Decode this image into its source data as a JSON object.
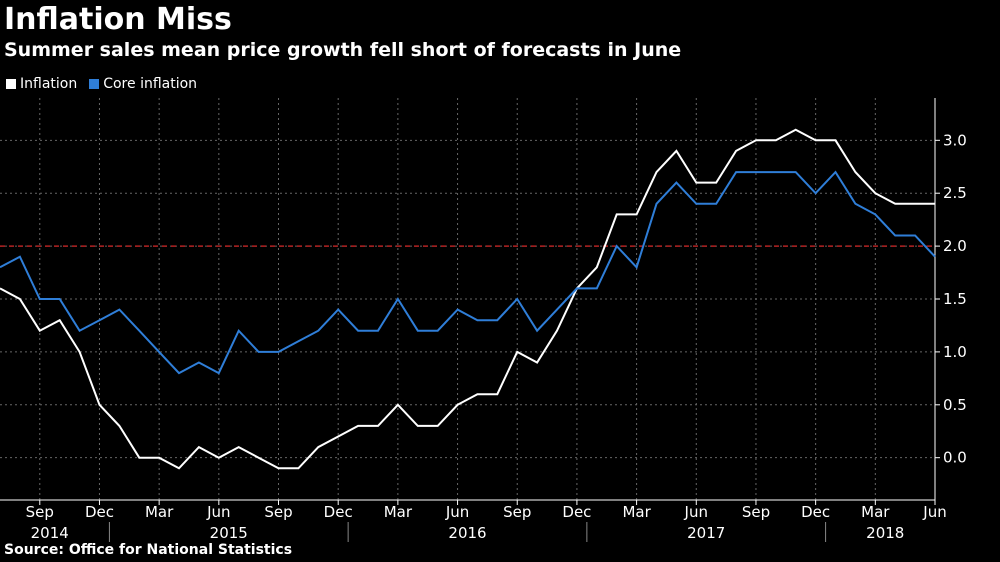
{
  "title": "Inflation Miss",
  "subtitle": "Summer sales mean price growth fell short of forecasts in June",
  "source": "Source: Office for National Statistics",
  "colors": {
    "inflation": "#ffffff",
    "core": "#2f7ed8",
    "target": "#b22222",
    "grid": "#666666"
  },
  "legend": [
    {
      "label": "Inflation",
      "color": "#ffffff"
    },
    {
      "label": "Core inflation",
      "color": "#2f7ed8"
    }
  ],
  "chart_data": {
    "type": "line",
    "x": [
      "2014-07",
      "2014-08",
      "2014-09",
      "2014-10",
      "2014-11",
      "2014-12",
      "2015-01",
      "2015-02",
      "2015-03",
      "2015-04",
      "2015-05",
      "2015-06",
      "2015-07",
      "2015-08",
      "2015-09",
      "2015-10",
      "2015-11",
      "2015-12",
      "2016-01",
      "2016-02",
      "2016-03",
      "2016-04",
      "2016-05",
      "2016-06",
      "2016-07",
      "2016-08",
      "2016-09",
      "2016-10",
      "2016-11",
      "2016-12",
      "2017-01",
      "2017-02",
      "2017-03",
      "2017-04",
      "2017-05",
      "2017-06",
      "2017-07",
      "2017-08",
      "2017-09",
      "2017-10",
      "2017-11",
      "2017-12",
      "2018-01",
      "2018-02",
      "2018-03",
      "2018-04",
      "2018-05",
      "2018-06"
    ],
    "series": [
      {
        "name": "Inflation",
        "color": "#ffffff",
        "values": [
          1.6,
          1.5,
          1.2,
          1.3,
          1.0,
          0.5,
          0.3,
          0.0,
          0.0,
          -0.1,
          0.1,
          0.0,
          0.1,
          0.0,
          -0.1,
          -0.1,
          0.1,
          0.2,
          0.3,
          0.3,
          0.5,
          0.3,
          0.3,
          0.5,
          0.6,
          0.6,
          1.0,
          0.9,
          1.2,
          1.6,
          1.8,
          2.3,
          2.3,
          2.7,
          2.9,
          2.6,
          2.6,
          2.9,
          3.0,
          3.0,
          3.1,
          3.0,
          3.0,
          2.7,
          2.5,
          2.4,
          2.4,
          2.4
        ]
      },
      {
        "name": "Core inflation",
        "color": "#2f7ed8",
        "values": [
          1.8,
          1.9,
          1.5,
          1.5,
          1.2,
          1.3,
          1.4,
          1.2,
          1.0,
          0.8,
          0.9,
          0.8,
          1.2,
          1.0,
          1.0,
          1.1,
          1.2,
          1.4,
          1.2,
          1.2,
          1.5,
          1.2,
          1.2,
          1.4,
          1.3,
          1.3,
          1.5,
          1.2,
          1.4,
          1.6,
          1.6,
          2.0,
          1.8,
          2.4,
          2.6,
          2.4,
          2.4,
          2.7,
          2.7,
          2.7,
          2.7,
          2.5,
          2.7,
          2.4,
          2.3,
          2.1,
          2.1,
          1.9
        ]
      }
    ],
    "reference_line": {
      "y": 2.0,
      "style": "dashed"
    },
    "yticks": [
      "0.0",
      "0.5",
      "1.0",
      "1.5",
      "2.0",
      "2.5",
      "3.0"
    ],
    "ylim": [
      -0.4,
      3.4
    ],
    "y_axis_side": "right",
    "xticks": [
      {
        "label": "Sep",
        "x": "2014-09"
      },
      {
        "label": "Dec",
        "x": "2014-12"
      },
      {
        "label": "Mar",
        "x": "2015-03"
      },
      {
        "label": "Jun",
        "x": "2015-06"
      },
      {
        "label": "Sep",
        "x": "2015-09"
      },
      {
        "label": "Dec",
        "x": "2015-12"
      },
      {
        "label": "Mar",
        "x": "2016-03"
      },
      {
        "label": "Jun",
        "x": "2016-06"
      },
      {
        "label": "Sep",
        "x": "2016-09"
      },
      {
        "label": "Dec",
        "x": "2016-12"
      },
      {
        "label": "Mar",
        "x": "2017-03"
      },
      {
        "label": "Jun",
        "x": "2017-06"
      },
      {
        "label": "Sep",
        "x": "2017-09"
      },
      {
        "label": "Dec",
        "x": "2017-12"
      },
      {
        "label": "Mar",
        "x": "2018-03"
      },
      {
        "label": "Jun",
        "x": "2018-06"
      }
    ],
    "year_labels": [
      {
        "label": "2014"
      },
      {
        "label": "2015"
      },
      {
        "label": "2016"
      },
      {
        "label": "2017"
      },
      {
        "label": "2018"
      }
    ],
    "grid": true,
    "legend_position": "top-left"
  }
}
